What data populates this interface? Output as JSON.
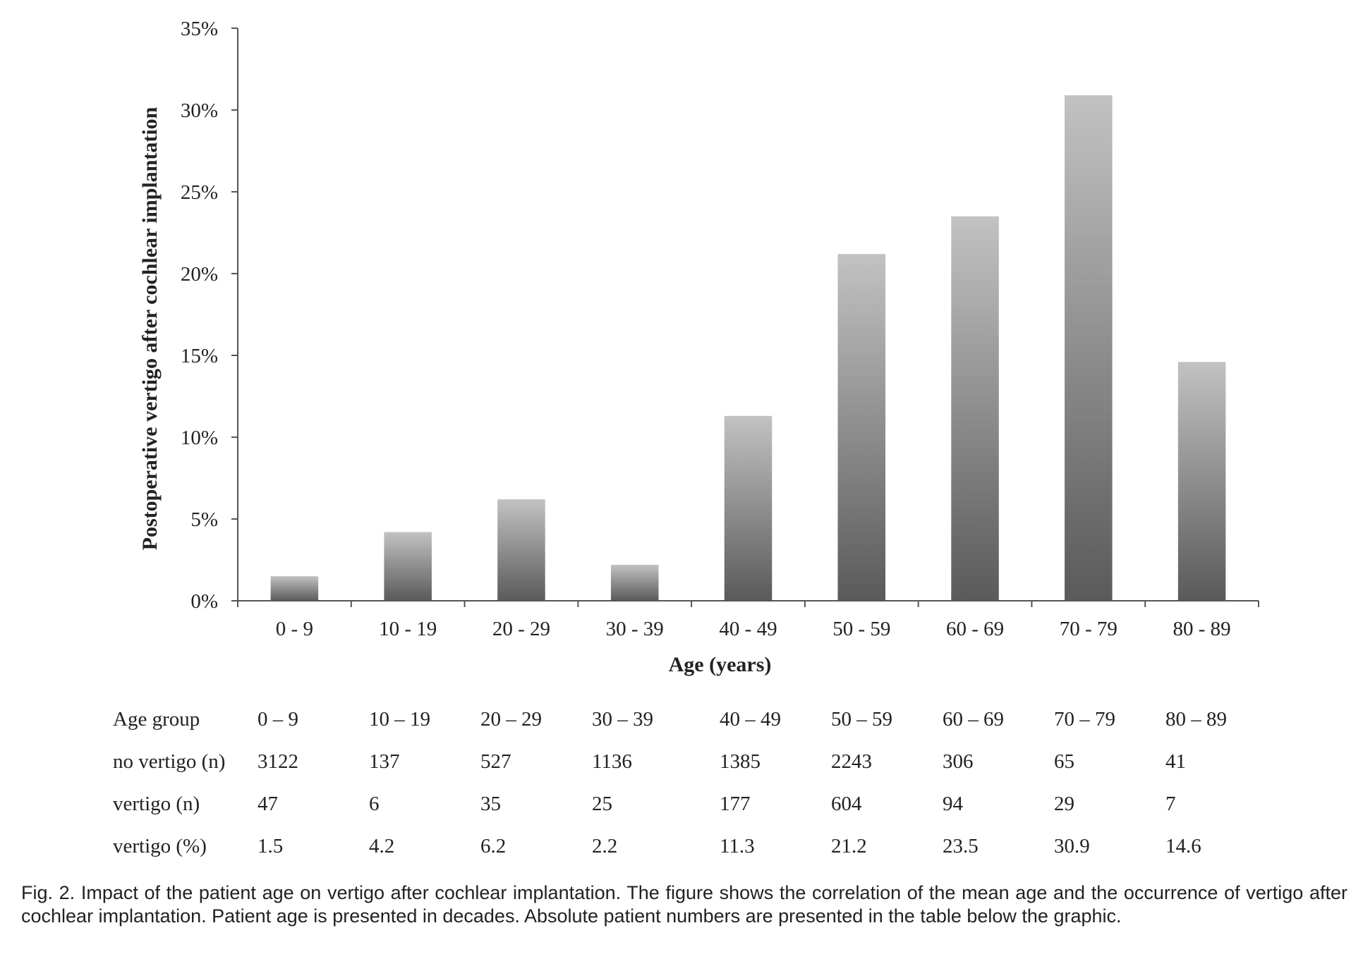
{
  "chart_data": {
    "type": "bar",
    "categories": [
      "0 - 9",
      "10 - 19",
      "20 - 29",
      "30 - 39",
      "40 - 49",
      "50 - 59",
      "60 - 69",
      "70 - 79",
      "80 - 89"
    ],
    "values": [
      1.5,
      4.2,
      6.2,
      2.2,
      11.3,
      21.2,
      23.5,
      30.9,
      14.6
    ],
    "xlabel": "Age (years)",
    "ylabel": "Postoperative vertigo after cochlear implantation",
    "ylim": [
      0,
      35
    ],
    "yticks": [
      "0%",
      "5%",
      "10%",
      "15%",
      "20%",
      "25%",
      "30%",
      "35%"
    ],
    "grid": false,
    "legend": "none",
    "bar_color_top": "#c2c2c2",
    "bar_color_bottom": "#5a5a5a"
  },
  "table": {
    "rows": [
      {
        "label": "Age group",
        "cells": [
          "0 – 9",
          "10 – 19",
          "20 – 29",
          "30 – 39",
          "40 – 49",
          "50 – 59",
          "60 – 69",
          "70 – 79",
          "80 – 89"
        ]
      },
      {
        "label": "no vertigo (n)",
        "cells": [
          "3122",
          "137",
          "527",
          "1136",
          "1385",
          "2243",
          "306",
          "65",
          "41"
        ]
      },
      {
        "label": "vertigo (n)",
        "cells": [
          "47",
          "6",
          "35",
          "25",
          "177",
          "604",
          "94",
          "29",
          "7"
        ]
      },
      {
        "label": "vertigo (%)",
        "cells": [
          "1.5",
          "4.2",
          "6.2",
          "2.2",
          "11.3",
          "21.2",
          "23.5",
          "30.9",
          "14.6"
        ]
      }
    ]
  },
  "caption": "Fig. 2. Impact of the patient age on vertigo after cochlear implantation. The figure shows the correlation of the mean age and the occurrence of vertigo after cochlear implantation. Patient age is presented in decades. Absolute patient numbers are presented in the table below the graphic."
}
